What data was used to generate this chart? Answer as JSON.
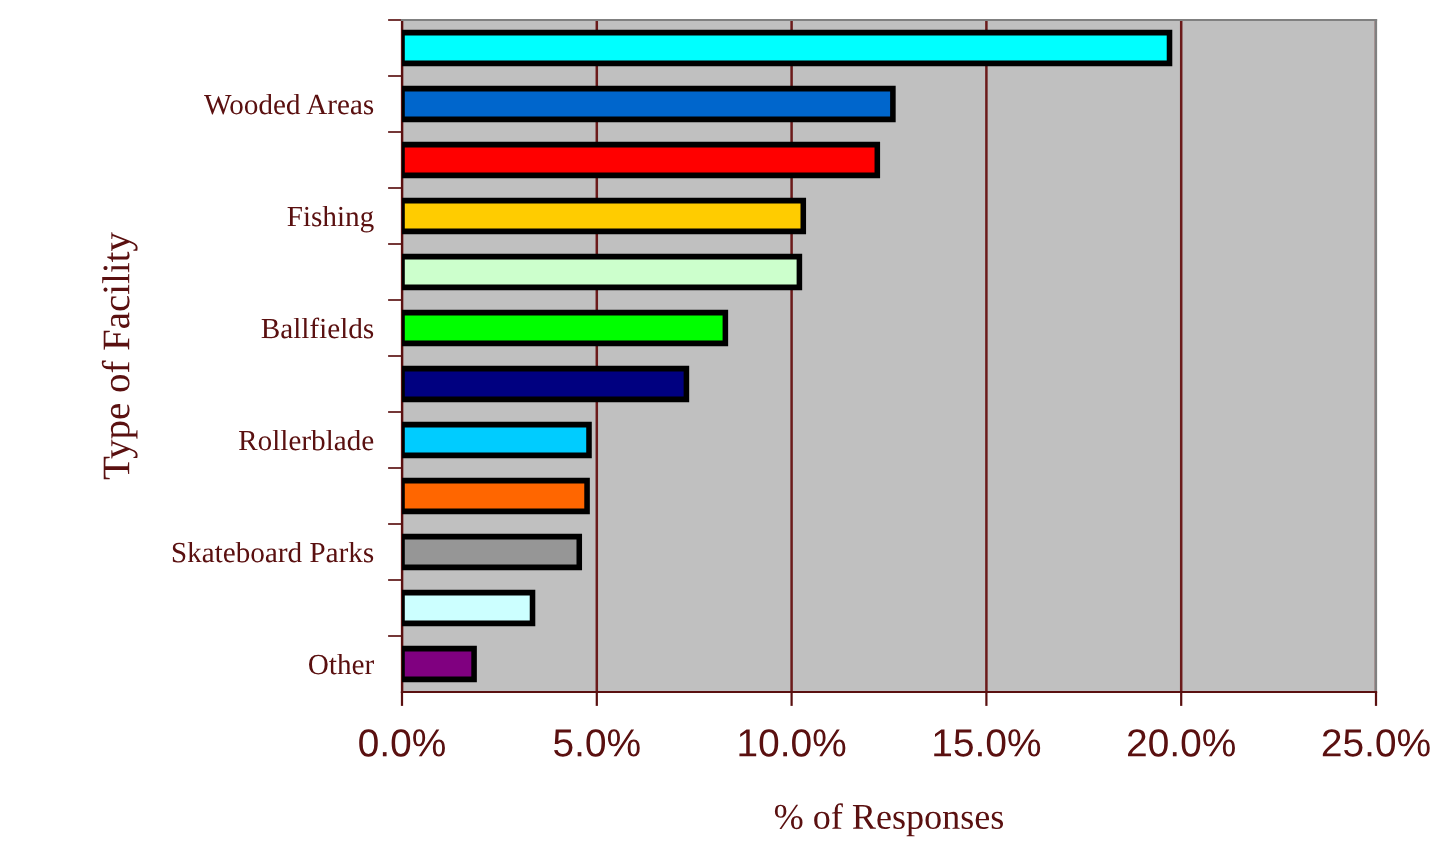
{
  "chart_data": {
    "type": "bar",
    "orientation": "horizontal",
    "xlabel": "% of Responses",
    "ylabel": "Type of Facility",
    "categories": [
      null,
      "Wooded Areas",
      null,
      "Fishing",
      null,
      "Ballfields",
      null,
      "Rollerblade",
      null,
      "Skateboard Parks",
      null,
      "Other"
    ],
    "values": [
      19.7,
      12.6,
      12.2,
      10.3,
      10.2,
      8.3,
      7.3,
      4.8,
      4.75,
      4.55,
      3.35,
      1.85
    ],
    "colors": [
      "#00ffff",
      "#0066cc",
      "#ff0000",
      "#ffcc00",
      "#ccffcc",
      "#00ff00",
      "#000080",
      "#00ccff",
      "#ff6600",
      "#969696",
      "#ccffff",
      "#800080"
    ],
    "xlim": [
      0,
      25
    ],
    "xticks": [
      {
        "value": 0,
        "label": "0.0%"
      },
      {
        "value": 5,
        "label": "5.0%"
      },
      {
        "value": 10,
        "label": "10.0%"
      },
      {
        "value": 15,
        "label": "15.0%"
      },
      {
        "value": 20,
        "label": "20.0%"
      },
      {
        "value": 25,
        "label": "25.0%"
      }
    ],
    "grid": "x",
    "legend": false
  }
}
